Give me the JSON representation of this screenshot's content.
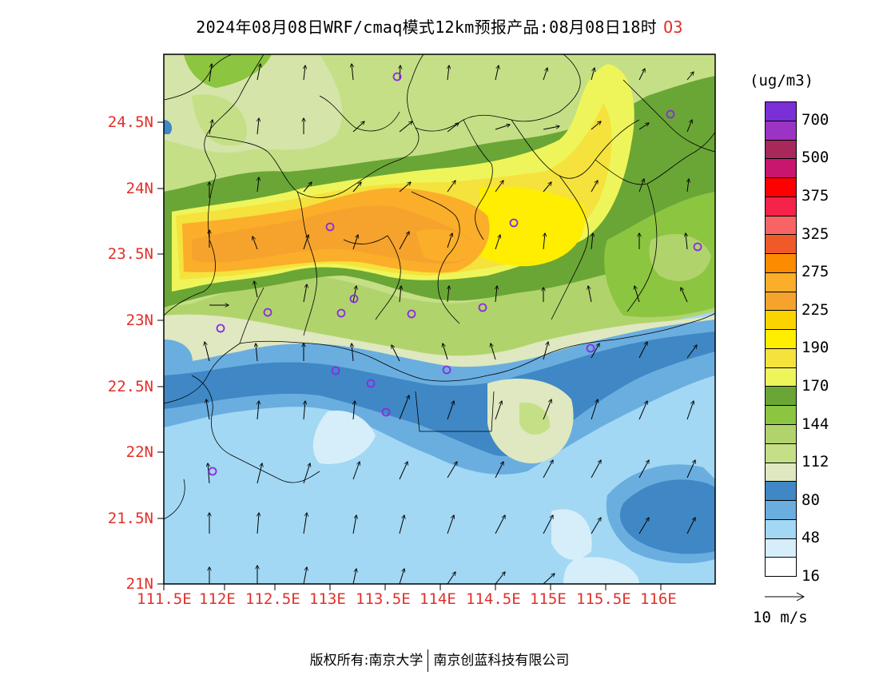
{
  "title": {
    "text": "2024年08月08日WRF/cmaq模式12km预报产品:08月08日18时",
    "species": "O3"
  },
  "lat_labels": [
    "24.5N",
    "24N",
    "23.5N",
    "23N",
    "22.5N",
    "22N",
    "21.5N",
    "21N"
  ],
  "lon_labels": [
    "111.5E",
    "112E",
    "112.5E",
    "113E",
    "113.5E",
    "114E",
    "114.5E",
    "115E",
    "115.5E",
    "116E"
  ],
  "legend": {
    "unit": "(ug/m3)",
    "labels": [
      "700",
      "500",
      "375",
      "325",
      "275",
      "225",
      "190",
      "170",
      "144",
      "112",
      "80",
      "48",
      "16"
    ],
    "colors": [
      "#7b2fd6",
      "#9b34c4",
      "#a8285c",
      "#c8156e",
      "#ff0000",
      "#f5224a",
      "#f86464",
      "#f05a28",
      "#fb8c00",
      "#fbae2a",
      "#f5a32d",
      "#fbd400",
      "#ffee00",
      "#f5e23c",
      "#eef55a",
      "#6aa636",
      "#8cc540",
      "#b1d36c",
      "#c5df86",
      "#dfe8c0",
      "#3f88c5",
      "#6aaee0",
      "#a2d8f4",
      "#d6eefa",
      "#ffffff"
    ]
  },
  "wind_reference": {
    "label": "10 m/s"
  },
  "footer": {
    "left": "版权所有:南京大学",
    "right": "南京创蓝科技有限公司"
  },
  "colors": {
    "axis_labels": "#e0302a",
    "station_marker": "#8a2be2"
  }
}
